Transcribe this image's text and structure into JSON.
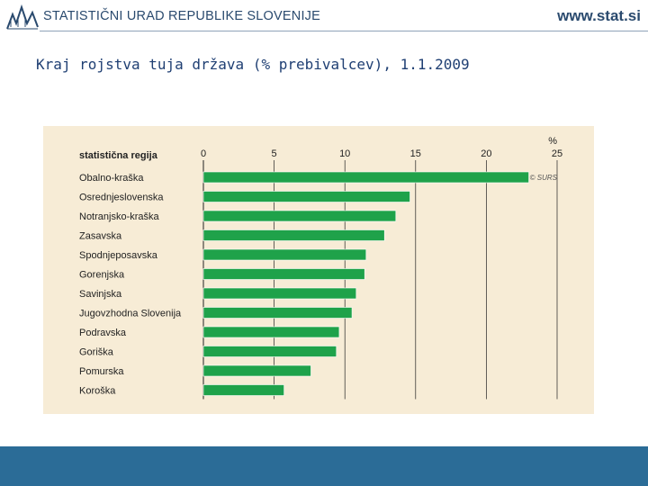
{
  "header": {
    "org_name": "STATISTIČNI URAD REPUBLIKE SLOVENIJE",
    "site_url": "www.stat.si"
  },
  "slide": {
    "title": "Kraj rojstva tuja država (% prebivalcev), 1.1.2009"
  },
  "chart_data": {
    "type": "bar",
    "orientation": "horizontal",
    "category_header": "statistična regija",
    "unit_label": "%",
    "copyright": "© SURS",
    "xlim": [
      0,
      25
    ],
    "ticks": [
      0,
      5,
      10,
      15,
      20,
      25
    ],
    "categories": [
      "Obalno-kraška",
      "Osrednjeslovenska",
      "Notranjsko-kraška",
      "Zasavska",
      "Spodnjeposavska",
      "Gorenjska",
      "Savinjska",
      "Jugovzhodna Slovenija",
      "Podravska",
      "Goriška",
      "Pomurska",
      "Koroška"
    ],
    "values": [
      23.0,
      14.6,
      13.6,
      12.8,
      11.5,
      11.4,
      10.8,
      10.5,
      9.6,
      9.4,
      7.6,
      5.7
    ],
    "bar_color": "#1fa24a"
  }
}
